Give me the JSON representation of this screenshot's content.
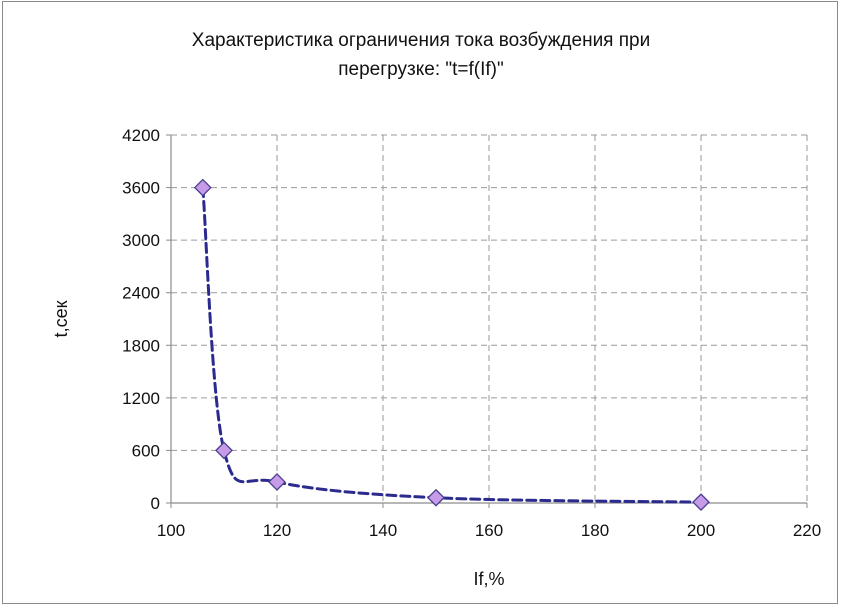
{
  "chart_data": {
    "type": "line",
    "title_line1": "Характеристика ограничения тока возбуждения при",
    "title_line2": "перегрузке: \"t=f(If)\"",
    "xlabel": "If,%",
    "ylabel": "t,сек",
    "xlim": [
      100,
      220
    ],
    "ylim": [
      0,
      4200
    ],
    "x_ticks": [
      "100",
      "120",
      "140",
      "160",
      "180",
      "200",
      "220"
    ],
    "y_ticks": [
      "0",
      "600",
      "1200",
      "1800",
      "2400",
      "3000",
      "3600",
      "4200"
    ],
    "grid": true,
    "legend": "none",
    "series": [
      {
        "x": [
          106,
          110,
          120,
          150,
          200
        ],
        "y": [
          3600,
          600,
          240,
          60,
          10
        ]
      }
    ],
    "colors": {
      "line": "#2b2b8f",
      "marker_fill": "#c89be8",
      "marker_stroke": "#4a3f8f",
      "grid": "#9a9a9a",
      "axis": "#8c8c8c"
    }
  }
}
